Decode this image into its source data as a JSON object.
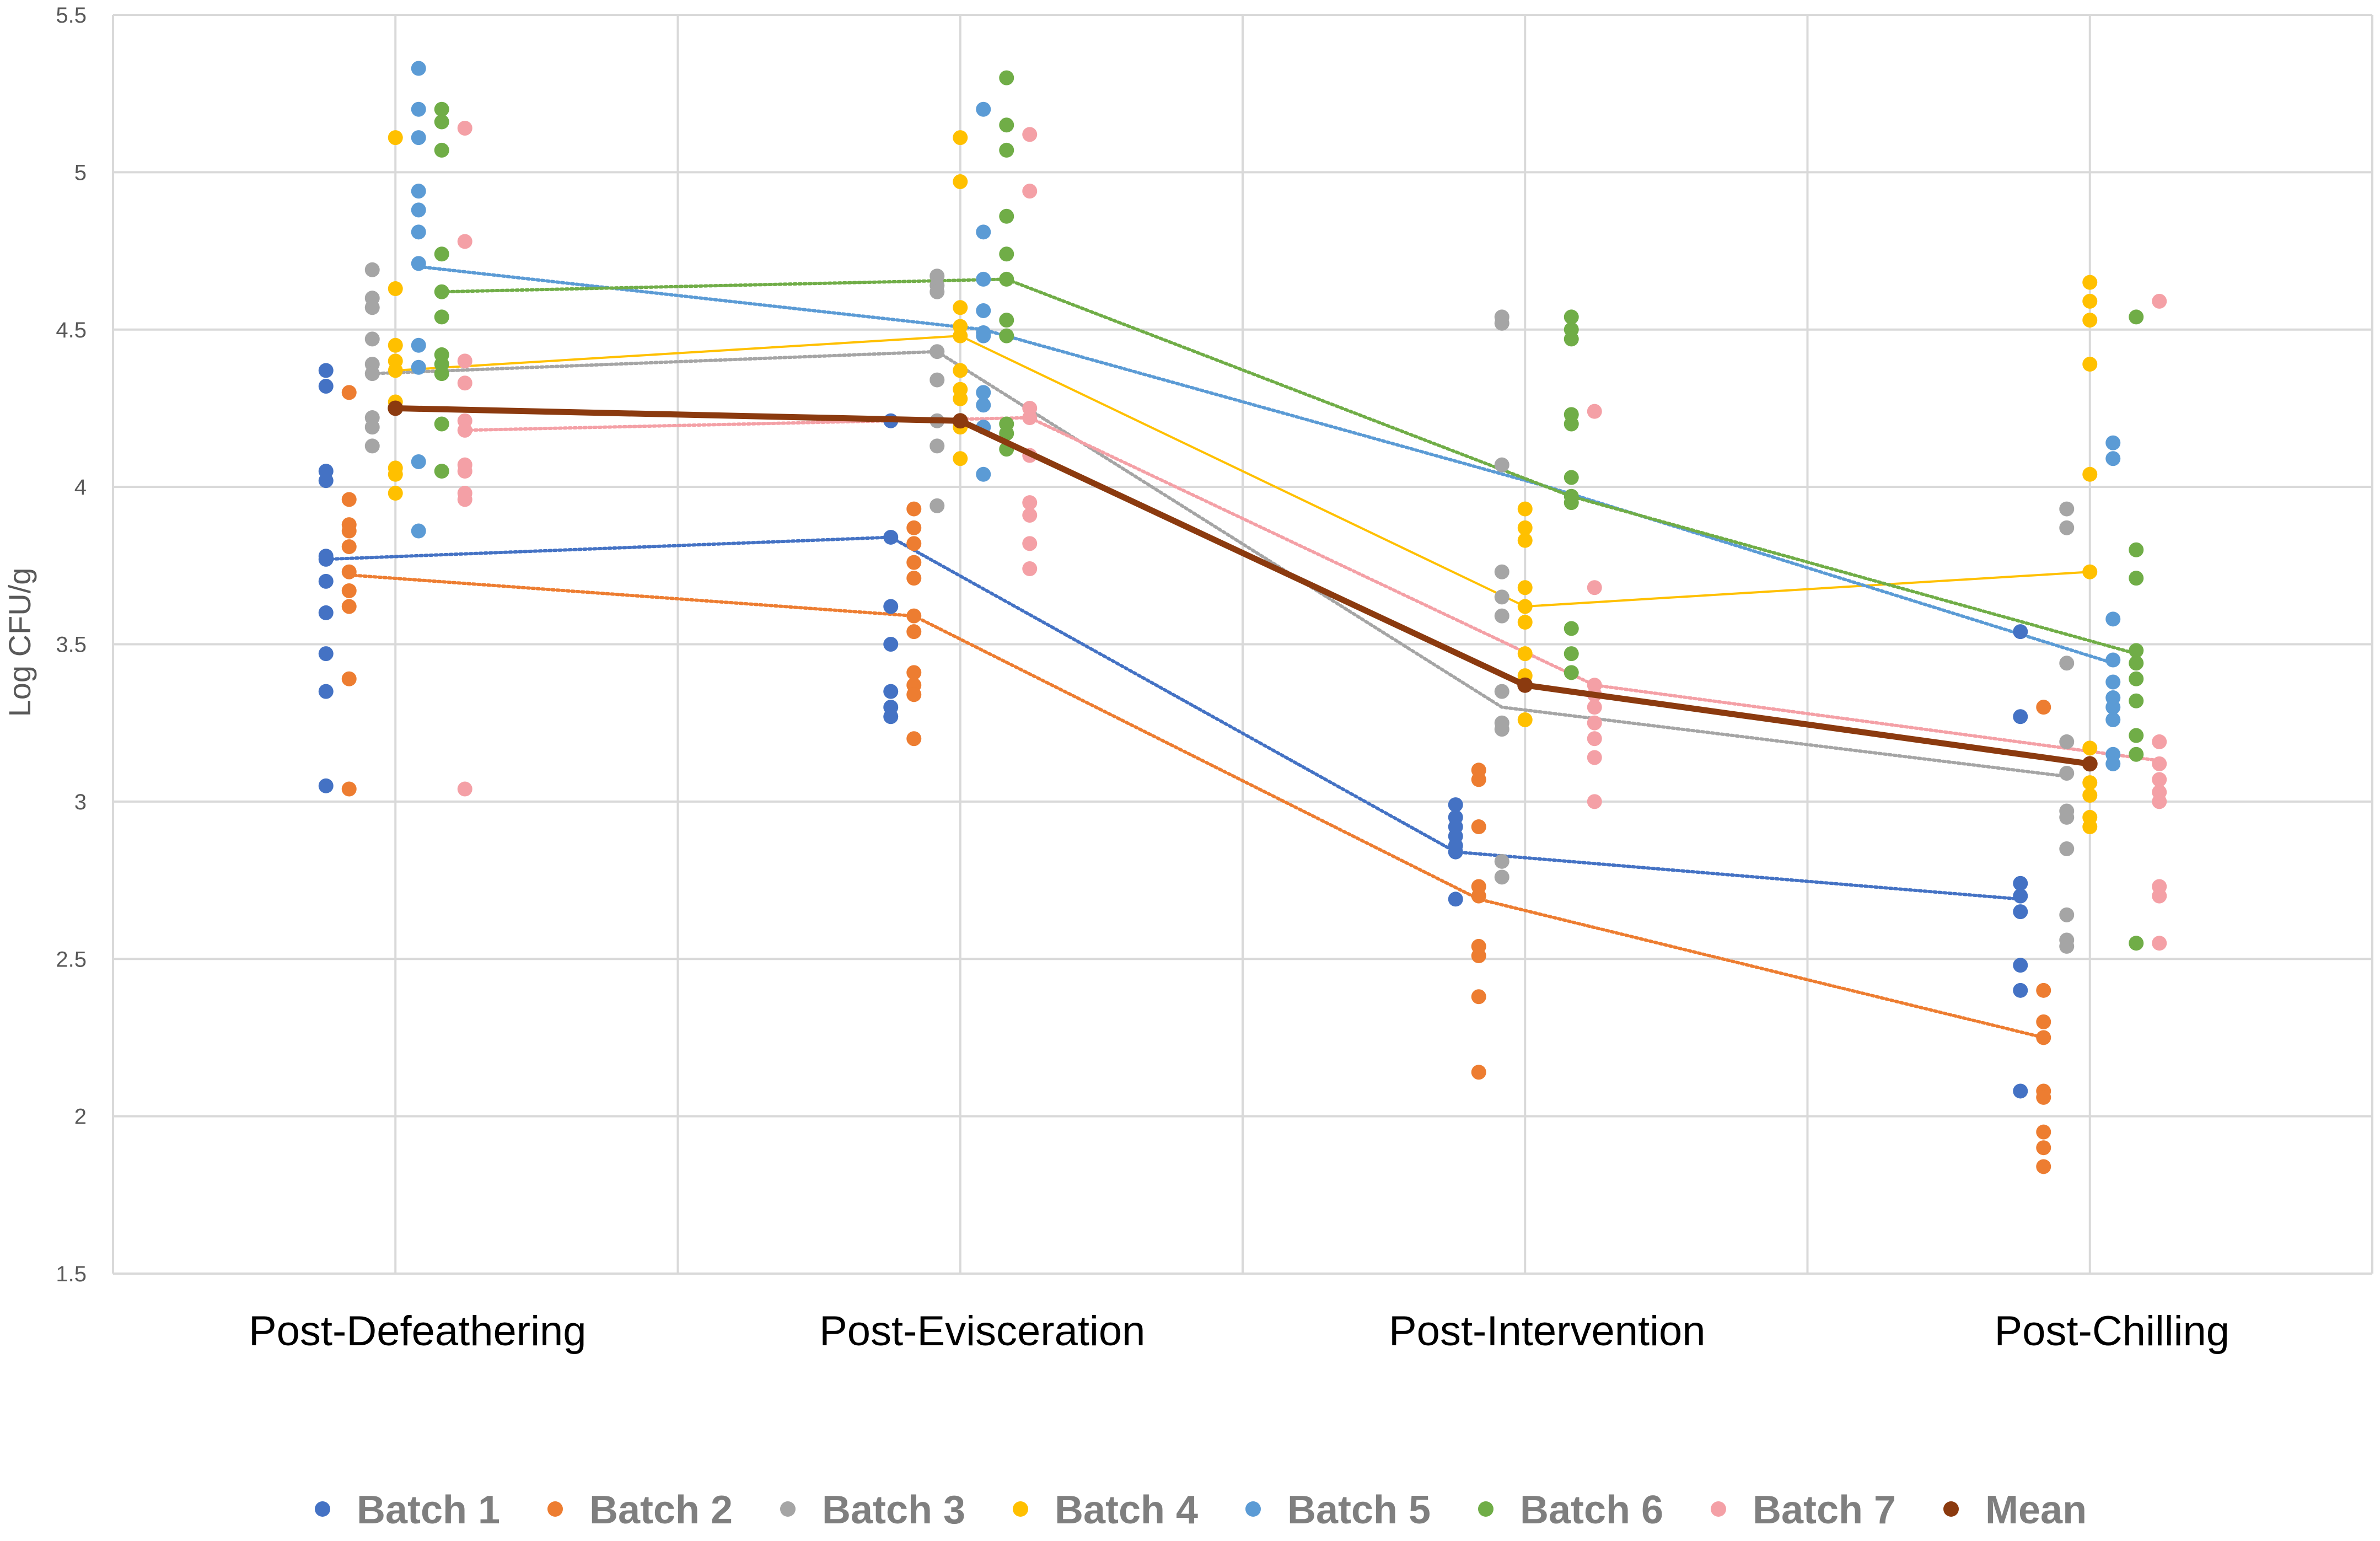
{
  "chart_data": {
    "type": "scatter",
    "title": "",
    "ylabel": "Log CFU/g",
    "xlabel": "",
    "ylim": [
      1.5,
      5.5
    ],
    "yticks": [
      "1.5",
      "2",
      "2.5",
      "3",
      "3.5",
      "4",
      "4.5",
      "5",
      "5.5"
    ],
    "categories": [
      "Post-Defeathering",
      "Post-Evisceration",
      "Post-Intervention",
      "Post-Chilling"
    ],
    "legend_position": "bottom",
    "series": [
      {
        "name": "Batch 1",
        "color": "#4472C4",
        "line_style": "dotted",
        "offset": -0.45,
        "mean_line": [
          3.77,
          3.84,
          2.84,
          2.69
        ],
        "points": [
          [
            4.37,
            4.32,
            4.05,
            4.02,
            3.78,
            3.77,
            3.7,
            3.6,
            3.47,
            3.35,
            3.05
          ],
          [
            4.21,
            3.84,
            3.62,
            3.5,
            3.35,
            3.3,
            3.27
          ],
          [
            2.99,
            2.95,
            2.92,
            2.89,
            2.86,
            2.84,
            2.69
          ],
          [
            3.54,
            3.27,
            2.74,
            2.7,
            2.65,
            2.48,
            2.4,
            2.08
          ]
        ]
      },
      {
        "name": "Batch 2",
        "color": "#ED7D31",
        "line_style": "dotted",
        "offset": -0.3,
        "mean_line": [
          3.72,
          3.59,
          2.69,
          2.25
        ],
        "points": [
          [
            4.3,
            3.96,
            3.88,
            3.86,
            3.81,
            3.73,
            3.67,
            3.62,
            3.39,
            3.04
          ],
          [
            3.93,
            3.87,
            3.82,
            3.76,
            3.71,
            3.59,
            3.54,
            3.41,
            3.37,
            3.34,
            3.2
          ],
          [
            3.1,
            3.07,
            2.92,
            2.73,
            2.7,
            2.54,
            2.51,
            2.38,
            2.14
          ],
          [
            3.3,
            2.4,
            2.3,
            2.25,
            2.08,
            2.06,
            1.95,
            1.9,
            1.84
          ]
        ]
      },
      {
        "name": "Batch 3",
        "color": "#A5A5A5",
        "line_style": "dotted",
        "offset": -0.15,
        "mean_line": [
          4.36,
          4.43,
          3.3,
          3.08
        ],
        "points": [
          [
            4.69,
            4.6,
            4.57,
            4.47,
            4.39,
            4.36,
            4.22,
            4.19,
            4.13
          ],
          [
            4.67,
            4.64,
            4.62,
            4.43,
            4.34,
            4.21,
            4.13,
            3.94
          ],
          [
            4.54,
            4.52,
            4.07,
            3.73,
            3.65,
            3.59,
            3.35,
            3.25,
            3.23,
            2.81,
            2.76
          ],
          [
            3.93,
            3.87,
            3.44,
            3.19,
            3.09,
            2.97,
            2.95,
            2.85,
            2.64,
            2.56,
            2.54
          ]
        ]
      },
      {
        "name": "Batch 4",
        "color": "#FFC000",
        "line_style": "solid",
        "offset": 0,
        "mean_line": [
          4.37,
          4.48,
          3.62,
          3.73
        ],
        "points": [
          [
            5.11,
            4.63,
            4.45,
            4.4,
            4.37,
            4.27,
            4.06,
            4.04,
            3.98
          ],
          [
            5.11,
            4.97,
            4.57,
            4.51,
            4.48,
            4.37,
            4.31,
            4.28,
            4.19,
            4.09
          ],
          [
            3.93,
            3.87,
            3.83,
            3.68,
            3.62,
            3.57,
            3.47,
            3.4,
            3.26
          ],
          [
            4.65,
            4.59,
            4.53,
            4.39,
            4.04,
            3.73,
            3.17,
            3.06,
            3.02,
            2.95,
            2.92
          ]
        ]
      },
      {
        "name": "Batch 5",
        "color": "#5B9BD5",
        "line_style": "dotted",
        "offset": 0.15,
        "mean_line": [
          4.7,
          4.5,
          4.0,
          3.44
        ],
        "points": [
          [
            5.33,
            5.2,
            5.11,
            4.94,
            4.88,
            4.81,
            4.71,
            4.45,
            4.38,
            4.08,
            3.86
          ],
          [
            5.2,
            4.81,
            4.66,
            4.56,
            4.49,
            4.48,
            4.3,
            4.26,
            4.19,
            4.04
          ],
          [],
          [
            4.14,
            4.09,
            3.58,
            3.45,
            3.38,
            3.33,
            3.3,
            3.26,
            3.15,
            3.12
          ]
        ]
      },
      {
        "name": "Batch 6",
        "color": "#70AD47",
        "line_style": "dotted",
        "offset": 0.3,
        "mean_line": [
          4.62,
          4.66,
          3.97,
          3.47
        ],
        "points": [
          [
            5.2,
            5.16,
            5.07,
            4.74,
            4.62,
            4.54,
            4.42,
            4.39,
            4.36,
            4.2,
            4.05
          ],
          [
            5.3,
            5.15,
            5.07,
            4.86,
            4.74,
            4.66,
            4.53,
            4.48,
            4.2,
            4.17,
            4.12
          ],
          [
            4.54,
            4.5,
            4.47,
            4.23,
            4.2,
            4.03,
            3.97,
            3.95,
            3.55,
            3.47,
            3.41
          ],
          [
            4.54,
            3.8,
            3.71,
            3.48,
            3.44,
            3.39,
            3.32,
            3.21,
            3.15,
            2.55
          ]
        ]
      },
      {
        "name": "Batch 7",
        "color": "#F4A0A6",
        "line_style": "dotted",
        "offset": 0.45,
        "mean_line": [
          4.18,
          4.22,
          3.37,
          3.13
        ],
        "points": [
          [
            5.14,
            4.78,
            4.4,
            4.33,
            4.21,
            4.18,
            4.07,
            4.05,
            3.98,
            3.96,
            3.04
          ],
          [
            5.12,
            4.94,
            4.25,
            4.22,
            4.1,
            3.95,
            3.91,
            3.82,
            3.74
          ],
          [
            4.24,
            3.68,
            3.37,
            3.34,
            3.3,
            3.25,
            3.2,
            3.14,
            3.0
          ],
          [
            4.59,
            3.19,
            3.12,
            3.07,
            3.03,
            3.0,
            2.73,
            2.7,
            2.55
          ]
        ]
      }
    ],
    "mean": {
      "name": "Mean",
      "color": "#8B3A0F",
      "values": [
        4.25,
        4.21,
        3.37,
        3.12
      ]
    }
  }
}
